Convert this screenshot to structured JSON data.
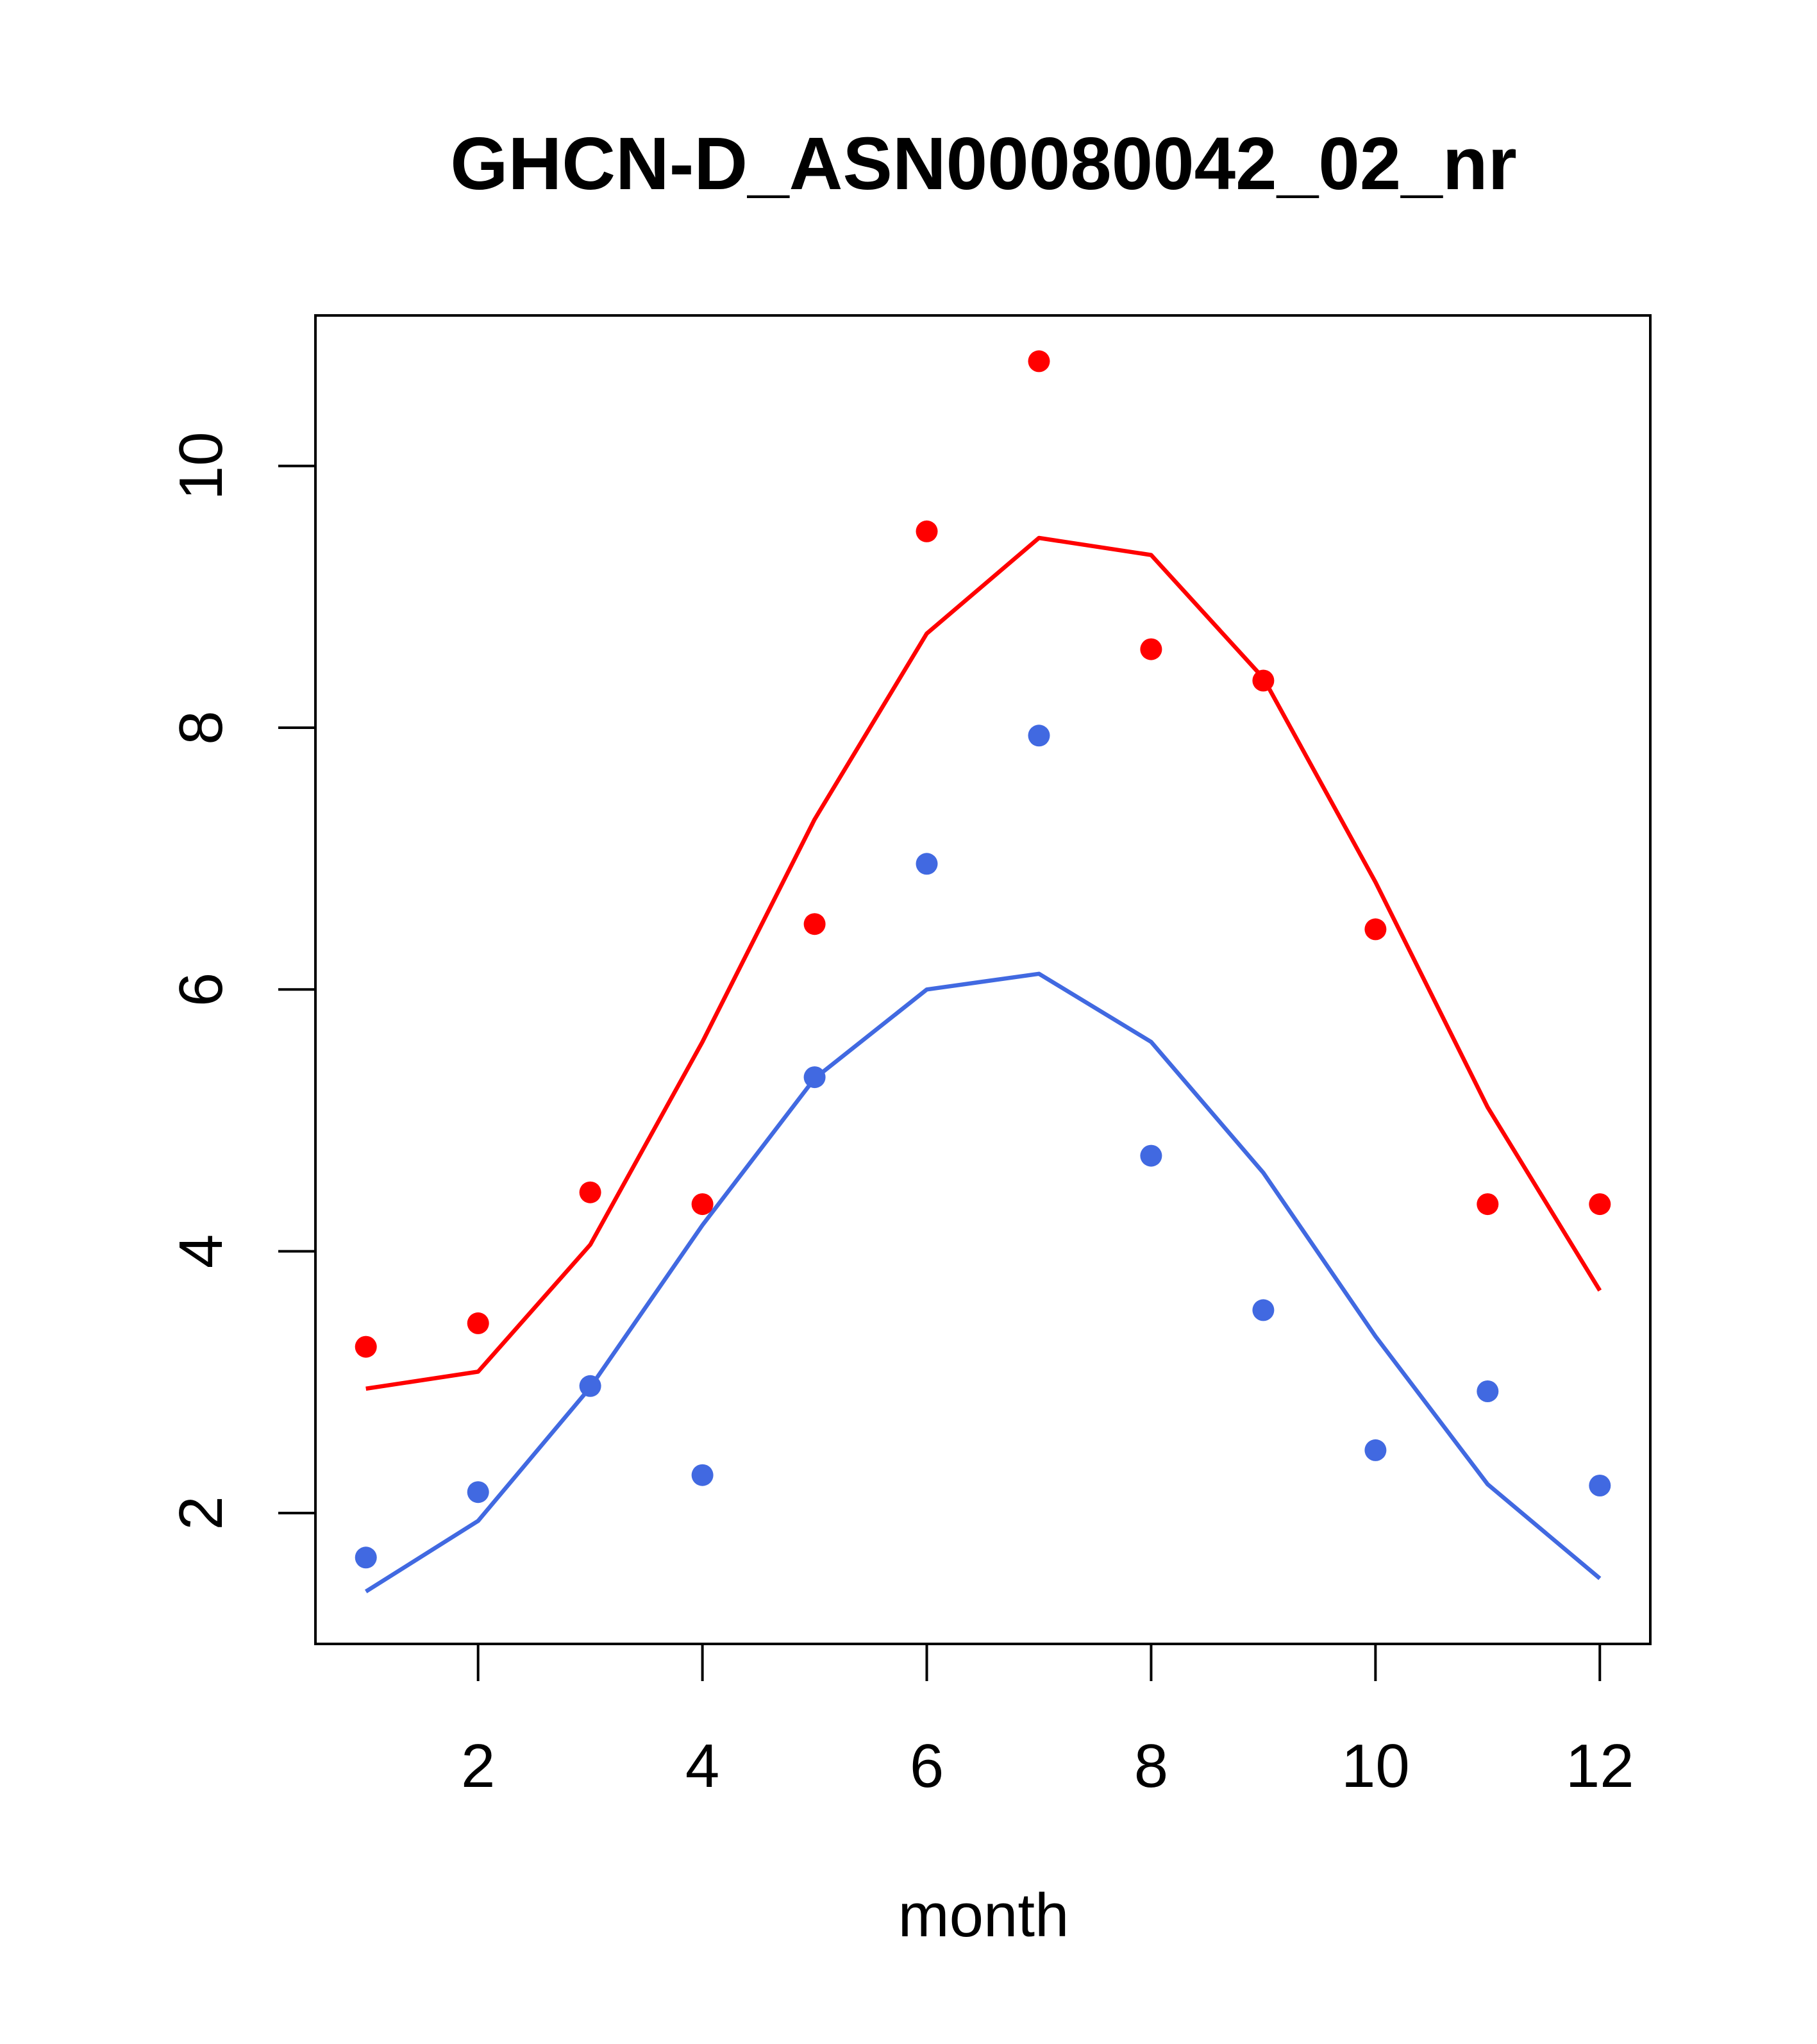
{
  "chart_data": {
    "type": "line",
    "title": "GHCN-D_ASN00080042_02_nr",
    "xlabel": "month",
    "ylabel": "",
    "xlim": [
      0.55,
      12.45
    ],
    "ylim": [
      1.0,
      11.15
    ],
    "x_ticks": [
      2,
      4,
      6,
      8,
      10,
      12
    ],
    "x_tick_labels": [
      "2",
      "4",
      "6",
      "8",
      "10",
      "12"
    ],
    "y_ticks": [
      2,
      4,
      6,
      8,
      10
    ],
    "y_tick_labels": [
      "2",
      "4",
      "6",
      "8",
      "10"
    ],
    "grid": false,
    "legend": "none",
    "x": [
      1,
      2,
      3,
      4,
      5,
      6,
      7,
      8,
      9,
      10,
      11,
      12
    ],
    "series": [
      {
        "kind": "line",
        "color": "#ff0000",
        "values": [
          2.95,
          3.08,
          4.05,
          5.6,
          7.3,
          8.72,
          9.45,
          9.32,
          8.38,
          6.82,
          5.1,
          3.7
        ]
      },
      {
        "kind": "line",
        "color": "#4169e1",
        "values": [
          1.4,
          1.94,
          2.96,
          4.2,
          5.32,
          6.0,
          6.12,
          5.6,
          4.6,
          3.35,
          2.22,
          1.5
        ]
      },
      {
        "kind": "points",
        "color": "#ff0000",
        "values": [
          3.27,
          3.45,
          4.45,
          4.36,
          6.5,
          9.5,
          10.8,
          8.6,
          8.36,
          6.46,
          4.36,
          4.36
        ]
      },
      {
        "kind": "points",
        "color": "#4169e1",
        "values": [
          1.66,
          2.16,
          2.97,
          2.29,
          5.33,
          6.96,
          7.94,
          4.73,
          3.55,
          2.48,
          2.93,
          2.21
        ]
      }
    ]
  }
}
